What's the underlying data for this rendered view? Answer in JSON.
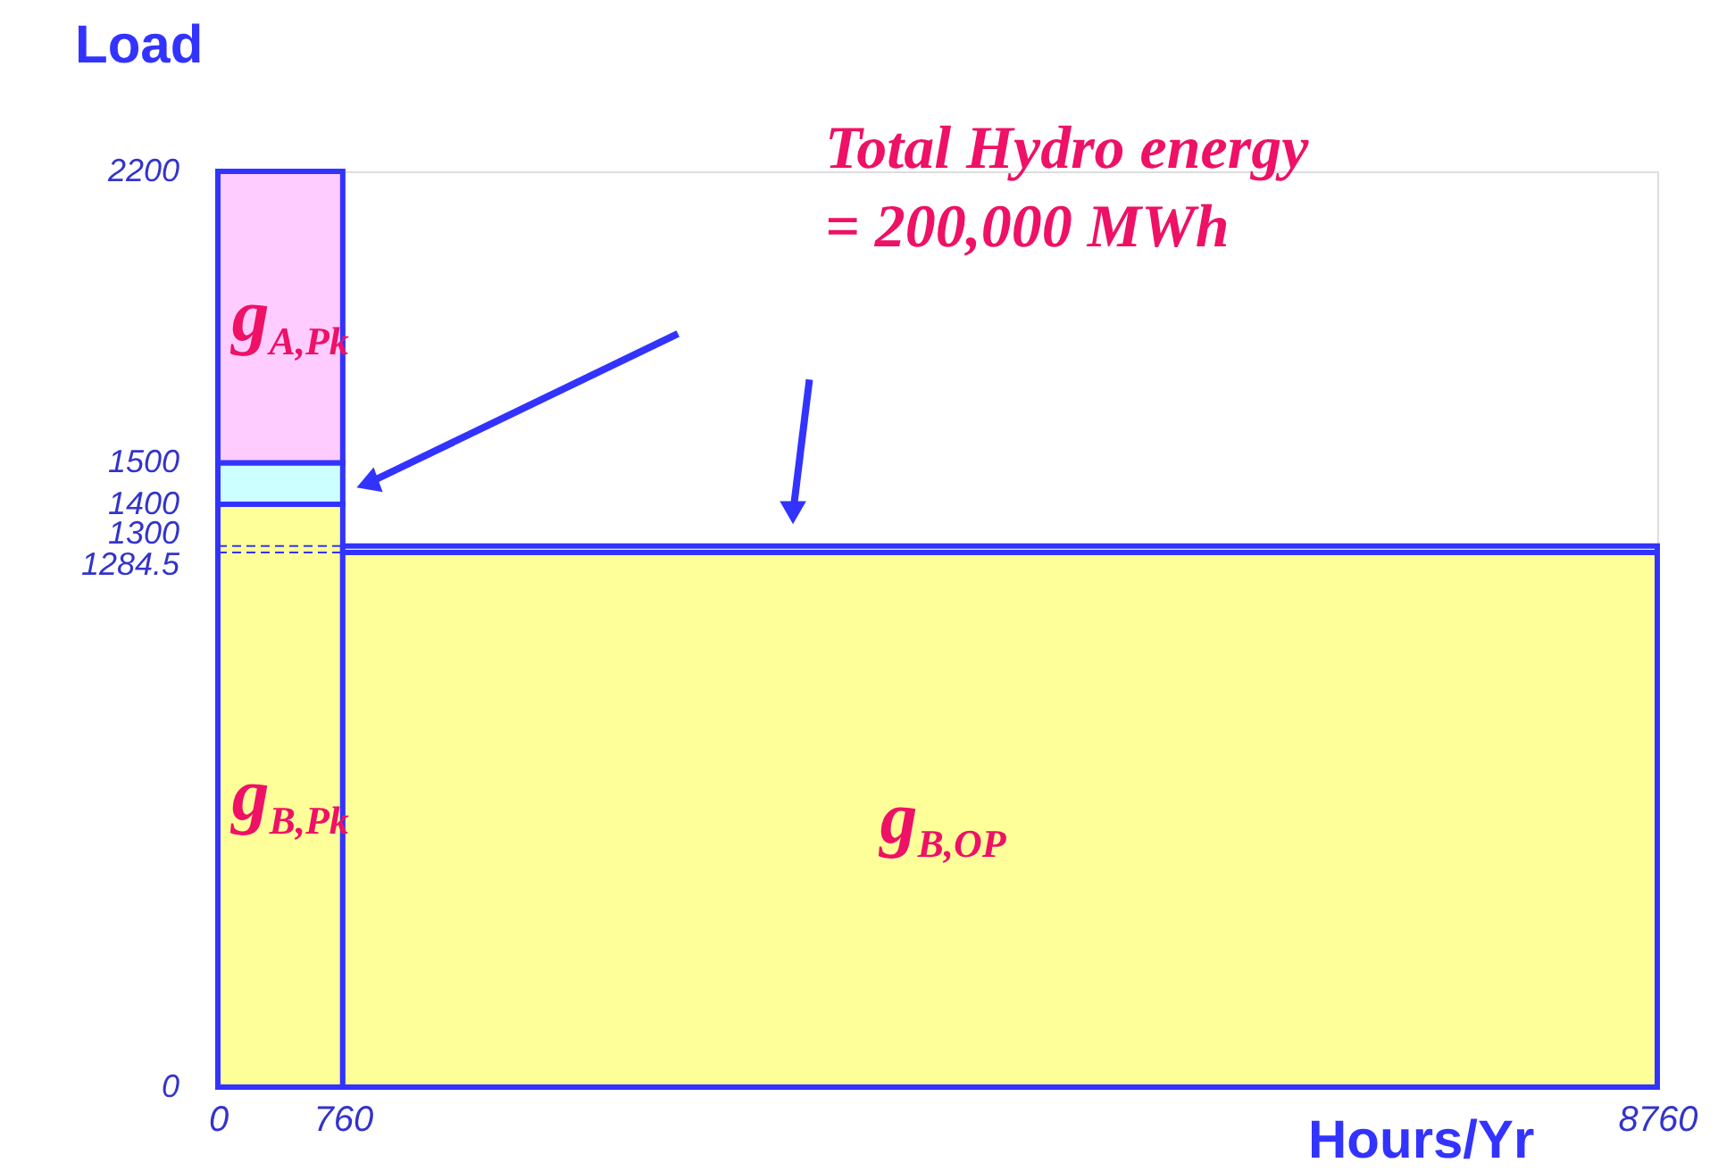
{
  "chart_data": {
    "type": "area",
    "stacked": true,
    "xlabel": "Hours/Yr",
    "ylabel": "Load",
    "x": [
      0,
      760,
      760,
      8760
    ],
    "series": [
      {
        "color": "#ffff99",
        "values": [
          1400,
          1400,
          1284.5,
          1284.5
        ]
      },
      {
        "color": "#ccffff",
        "values": [
          100,
          100,
          15.5,
          15.5
        ]
      },
      {
        "color": "#ffccff",
        "values": [
          700,
          700,
          null,
          null
        ]
      }
    ],
    "xlim": [
      0,
      8760
    ],
    "ylim": [
      0,
      2200
    ],
    "xticks": [
      0,
      760,
      8760
    ],
    "yticks": [
      0,
      1284.5,
      1300,
      1400,
      1500,
      2200
    ],
    "grid": false,
    "ref_lines": [
      {
        "axis": "y",
        "value": 1300,
        "line_style": "dashed",
        "color": "#3333ff"
      },
      {
        "axis": "y",
        "value": 1284.5,
        "line_style": "dashed",
        "color": "#3333ff"
      }
    ],
    "annotations": [
      "g$_{A,Pk}$",
      "g$_{B,Pk}$",
      "g$_{B,OP}$",
      "Total Hydro energy\n= 200,000 MWh"
    ]
  }
}
